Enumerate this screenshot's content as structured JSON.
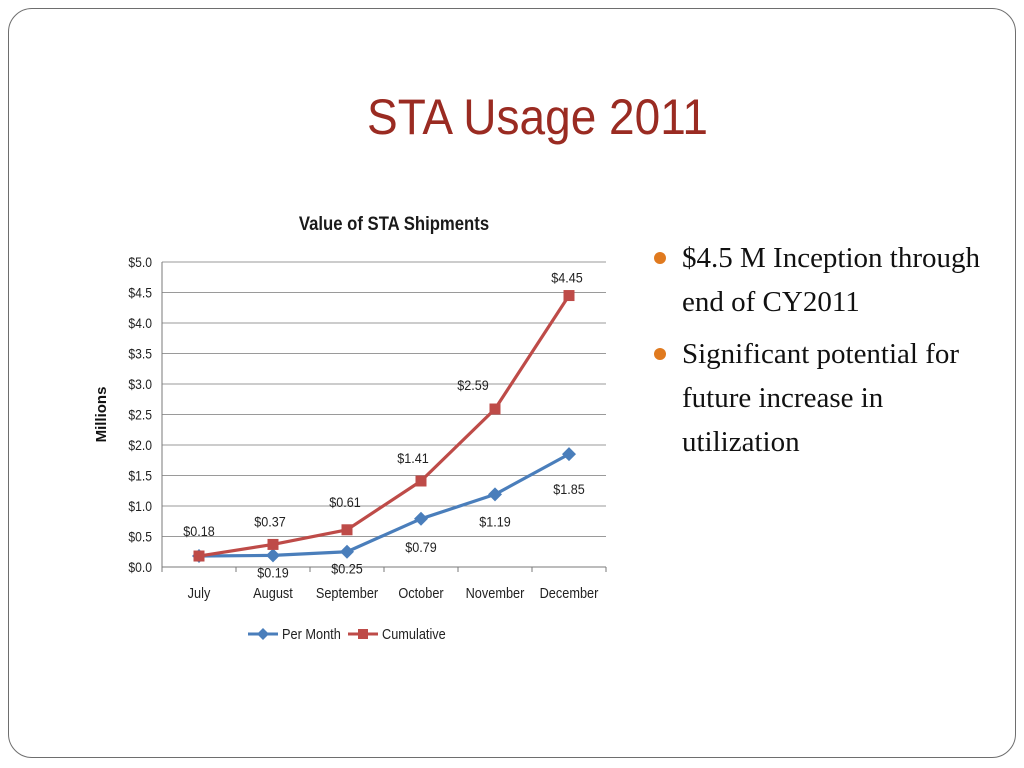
{
  "slide": {
    "title": "STA Usage 2011",
    "bullets": [
      "$4.5 M Inception through end of CY2011",
      "Significant potential for future increase in utilization"
    ]
  },
  "colors": {
    "title": "#9a2b22",
    "bullet": "#e07a1f",
    "per_month": "#4a7ebb",
    "cumulative": "#be4b48"
  },
  "chart_data": {
    "type": "line",
    "title": "Value of STA Shipments",
    "ylabel": "Millions",
    "xlabel": "",
    "categories": [
      "July",
      "August",
      "September",
      "October",
      "November",
      "December"
    ],
    "ylim": [
      0,
      5
    ],
    "yticks": [
      "$0.0",
      "$0.5",
      "$1.0",
      "$1.5",
      "$2.0",
      "$2.5",
      "$3.0",
      "$3.5",
      "$4.0",
      "$4.5",
      "$5.0"
    ],
    "grid": true,
    "legend": "bottom",
    "series": [
      {
        "name": "Per Month",
        "values": [
          0.18,
          0.19,
          0.25,
          0.79,
          1.19,
          1.85
        ],
        "labels": [
          "",
          "$0.19",
          "$0.25",
          "$0.79",
          "$1.19",
          "$1.85"
        ],
        "color": "#4a7ebb",
        "marker": "diamond"
      },
      {
        "name": "Cumulative",
        "values": [
          0.18,
          0.37,
          0.61,
          1.41,
          2.59,
          4.45
        ],
        "labels": [
          "$0.18",
          "$0.37",
          "$0.61",
          "$1.41",
          "$2.59",
          "$4.45"
        ],
        "color": "#be4b48",
        "marker": "square"
      }
    ]
  }
}
